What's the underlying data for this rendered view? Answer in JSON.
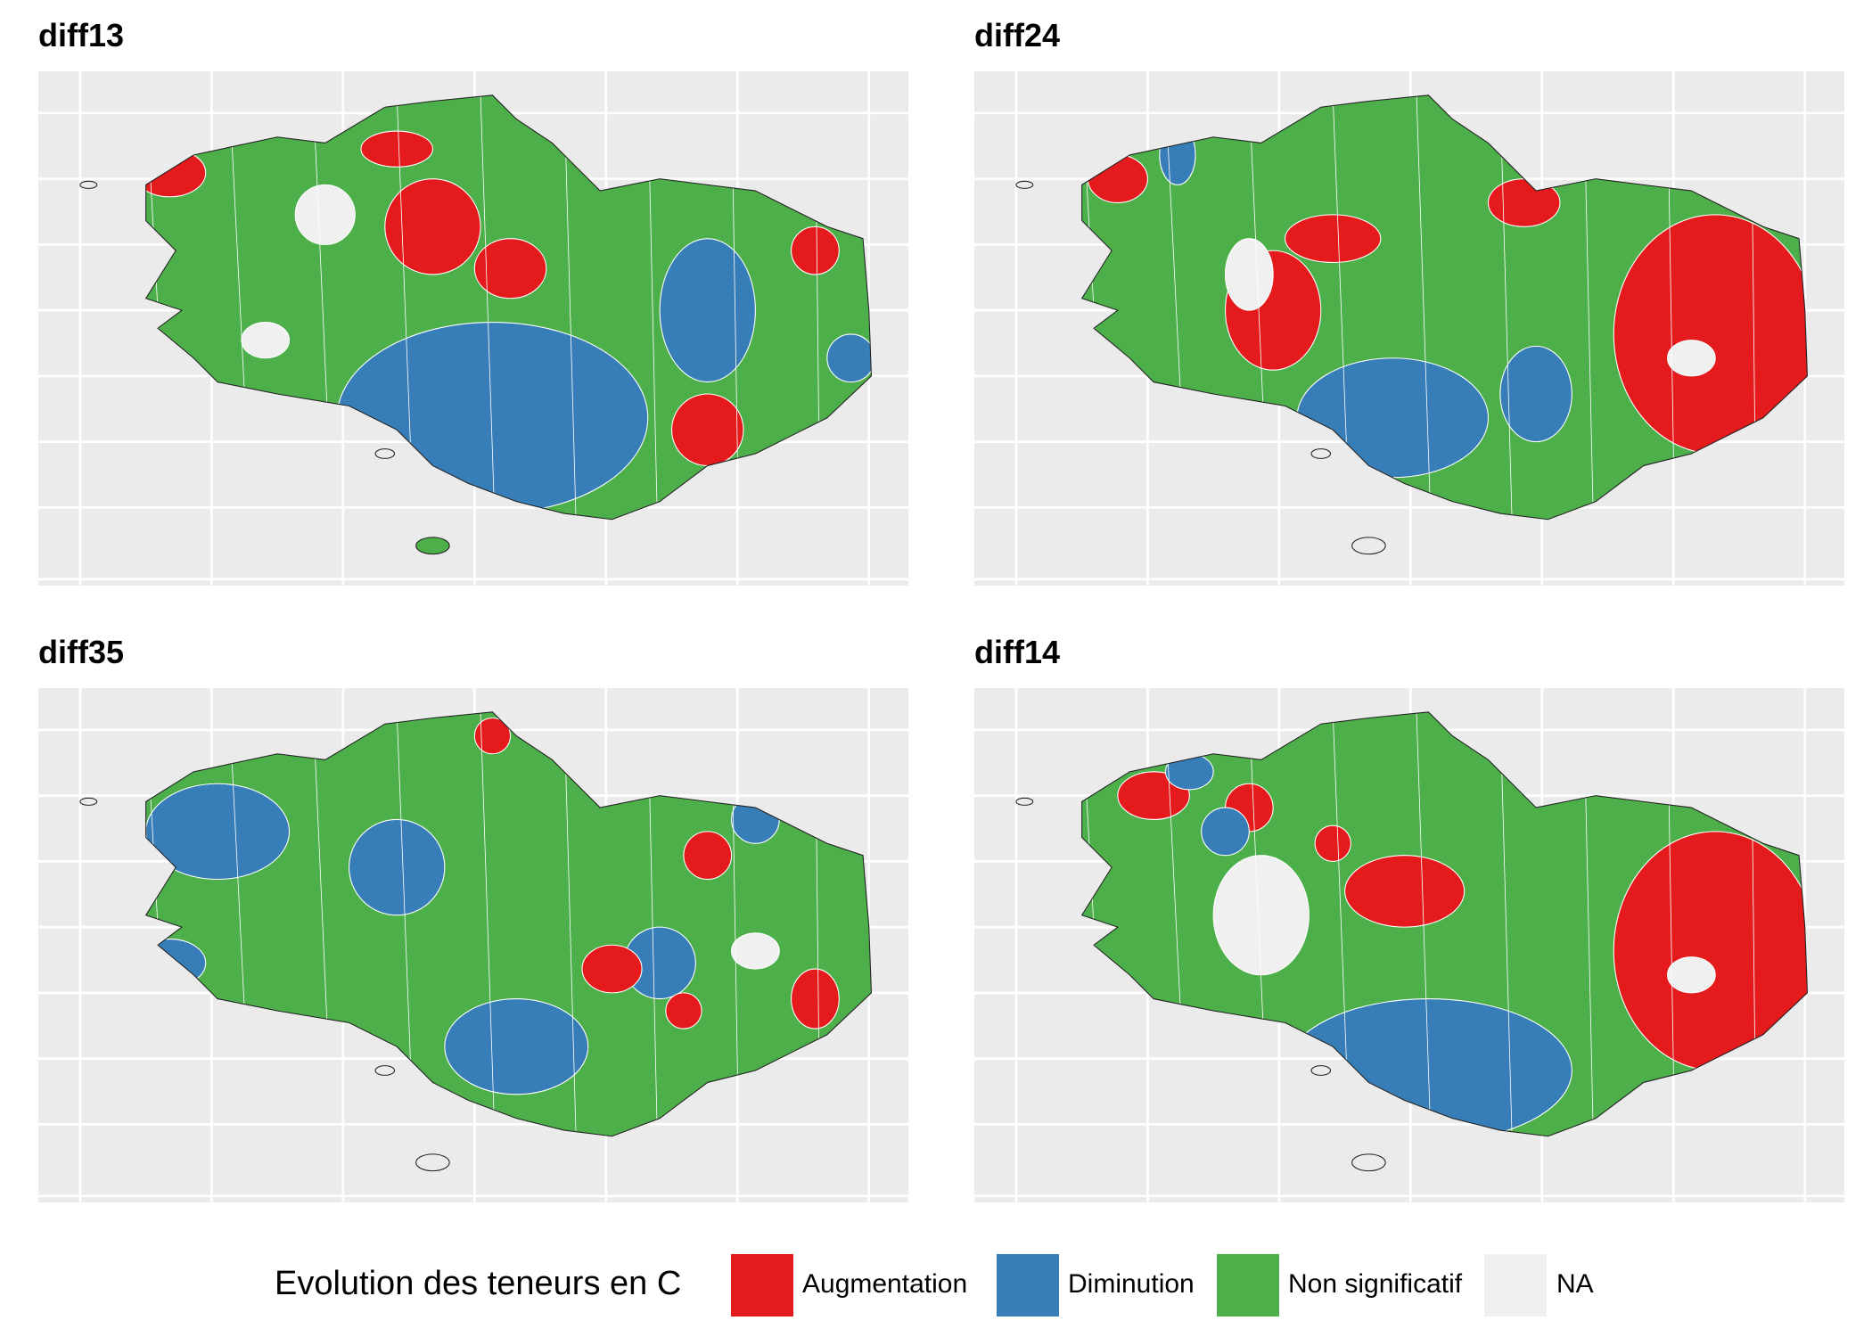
{
  "panels": [
    {
      "title": "diff13"
    },
    {
      "title": "diff24"
    },
    {
      "title": "diff35"
    },
    {
      "title": "diff14"
    }
  ],
  "legend": {
    "title": "Evolution des teneurs en C",
    "items": [
      {
        "label": "Augmentation",
        "color": "#e41a1c"
      },
      {
        "label": "Diminution",
        "color": "#377eb8"
      },
      {
        "label": "Non significatif",
        "color": "#4daf4a"
      },
      {
        "label": "NA",
        "color": "#f0f0f0"
      }
    ]
  }
}
